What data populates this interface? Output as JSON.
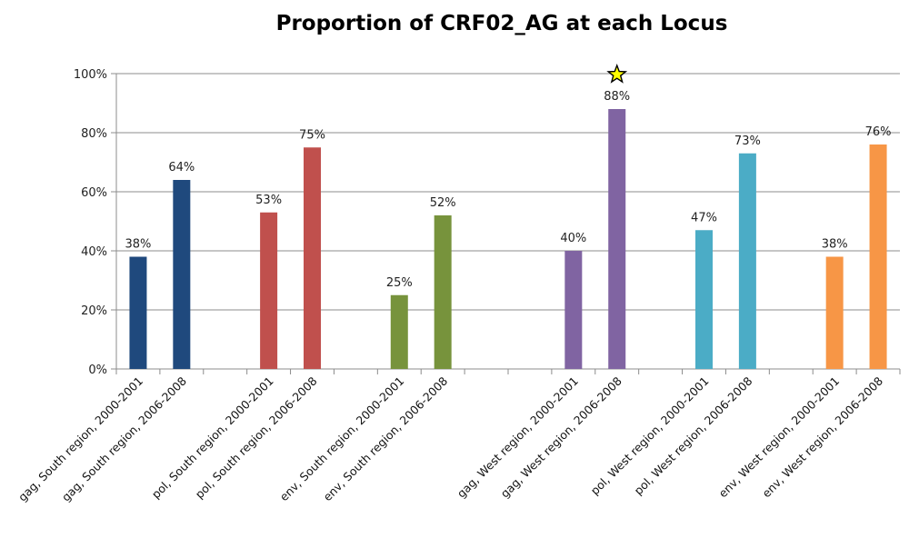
{
  "chart_data": {
    "type": "bar",
    "title": "Proportion of CRF02_AG at each Locus",
    "xlabel": "",
    "ylabel": "",
    "ylim": [
      0,
      100
    ],
    "yticks": [
      "0%",
      "20%",
      "40%",
      "60%",
      "80%",
      "100%"
    ],
    "grid": true,
    "legend": "none",
    "categories": [
      "gag, South region, 2000-2001",
      "gag, South region, 2006-2008",
      "",
      "pol, South region, 2000-2001",
      "pol, South region, 2006-2008",
      "",
      "env, South region, 2000-2001",
      "env, South region, 2006-2008",
      "",
      "",
      "gag, West region, 2000-2001",
      "gag, West region, 2006-2008",
      "",
      "pol, West region, 2000-2001",
      "pol, West region, 2006-2008",
      "",
      "env, West region, 2000-2001",
      "env, West region, 2006-2008"
    ],
    "values": [
      38,
      64,
      null,
      53,
      75,
      null,
      25,
      52,
      null,
      null,
      40,
      88,
      null,
      47,
      73,
      null,
      38,
      76
    ],
    "data_labels": [
      "38%",
      "64%",
      "",
      "53%",
      "75%",
      "",
      "25%",
      "52%",
      "",
      "",
      "40%",
      "88%",
      "",
      "47%",
      "73%",
      "",
      "38%",
      "76%"
    ],
    "colors": [
      "#1f497d",
      "#1f497d",
      "",
      "#c0504d",
      "#c0504d",
      "",
      "#77933c",
      "#77933c",
      "",
      "",
      "#8064a2",
      "#8064a2",
      "",
      "#4bacc6",
      "#4bacc6",
      "",
      "#f79646",
      "#f79646"
    ],
    "annotations": [
      {
        "type": "star",
        "category": "gag, West region, 2006-2008",
        "color": "#ffff00"
      }
    ]
  }
}
